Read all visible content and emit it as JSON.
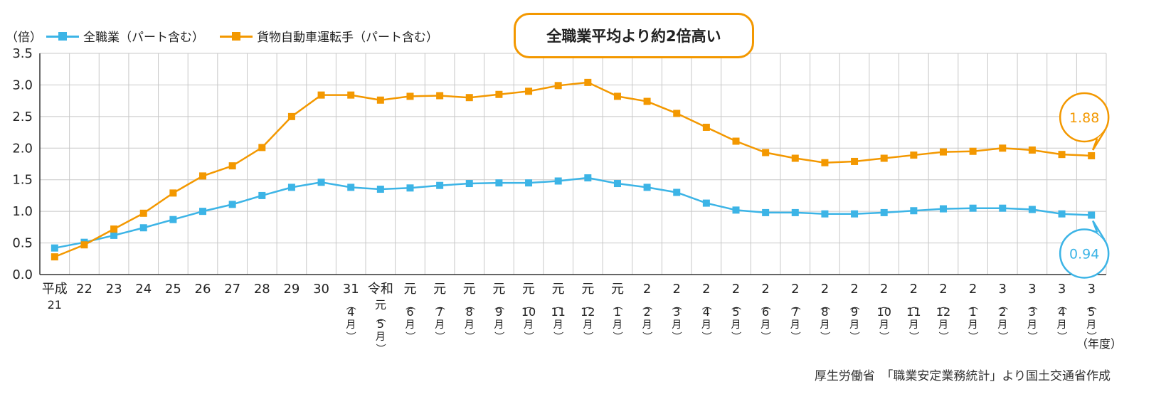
{
  "legend": {
    "unit": "（倍）",
    "items": [
      {
        "label": "全職業（パート含む）"
      },
      {
        "label": "貨物自動車運転手（パート含む）"
      }
    ]
  },
  "annotation": "全職業平均より約2倍高い",
  "source": "厚生労働省　「職業安定業務統計」より国土交通省作成",
  "x_unit": "（年度）",
  "chart_data": {
    "type": "line",
    "ylim": [
      0,
      3.5
    ],
    "y_ticks": [
      "0.0",
      "0.5",
      "1.0",
      "1.5",
      "2.0",
      "2.5",
      "3.0",
      "3.5"
    ],
    "grid": true,
    "categories": [
      [
        "平成",
        "21"
      ],
      [
        "22"
      ],
      [
        "23"
      ],
      [
        "24"
      ],
      [
        "25"
      ],
      [
        "26"
      ],
      [
        "27"
      ],
      [
        "28"
      ],
      [
        "29"
      ],
      [
        "30"
      ],
      [
        "31",
        "（",
        "4",
        "月",
        "）"
      ],
      [
        "令和",
        "元",
        "（",
        "5",
        "月",
        "）"
      ],
      [
        "元",
        "（",
        "6",
        "月",
        "）"
      ],
      [
        "元",
        "（",
        "7",
        "月",
        "）"
      ],
      [
        "元",
        "（",
        "8",
        "月",
        "）"
      ],
      [
        "元",
        "（",
        "9",
        "月",
        "）"
      ],
      [
        "元",
        "（",
        "10",
        "月",
        "）"
      ],
      [
        "元",
        "（",
        "11",
        "月",
        "）"
      ],
      [
        "元",
        "（",
        "12",
        "月",
        "）"
      ],
      [
        "元",
        "（",
        "1",
        "月",
        "）"
      ],
      [
        "2",
        "（",
        "2",
        "月",
        "）"
      ],
      [
        "2",
        "（",
        "3",
        "月",
        "）"
      ],
      [
        "2",
        "（",
        "4",
        "月",
        "）"
      ],
      [
        "2",
        "（",
        "5",
        "月",
        "）"
      ],
      [
        "2",
        "（",
        "6",
        "月",
        "）"
      ],
      [
        "2",
        "（",
        "7",
        "月",
        "）"
      ],
      [
        "2",
        "（",
        "8",
        "月",
        "）"
      ],
      [
        "2",
        "（",
        "9",
        "月",
        "）"
      ],
      [
        "2",
        "（",
        "10",
        "月",
        "）"
      ],
      [
        "2",
        "（",
        "11",
        "月",
        "）"
      ],
      [
        "2",
        "（",
        "12",
        "月",
        "）"
      ],
      [
        "2",
        "（",
        "1",
        "月",
        "）"
      ],
      [
        "3",
        "（",
        "2",
        "月",
        "）"
      ],
      [
        "3",
        "（",
        "3",
        "月",
        "）"
      ],
      [
        "3",
        "（",
        "4",
        "月",
        "）"
      ],
      [
        "3",
        "（",
        "5",
        "月",
        "）"
      ]
    ],
    "series": [
      {
        "name": "全職業（パート含む）",
        "color": "#3cb4e6",
        "values": [
          0.42,
          0.51,
          0.62,
          0.74,
          0.87,
          1.0,
          1.11,
          1.25,
          1.38,
          1.46,
          1.38,
          1.35,
          1.37,
          1.41,
          1.44,
          1.45,
          1.45,
          1.48,
          1.53,
          1.44,
          1.38,
          1.3,
          1.13,
          1.02,
          0.98,
          0.98,
          0.96,
          0.96,
          0.98,
          1.01,
          1.04,
          1.05,
          1.05,
          1.03,
          0.96,
          0.94
        ],
        "end_label": "0.94"
      },
      {
        "name": "貨物自動車運転手（パート含む）",
        "color": "#f39800",
        "values": [
          0.28,
          0.47,
          0.72,
          0.97,
          1.29,
          1.56,
          1.72,
          2.01,
          2.5,
          2.84,
          2.84,
          2.76,
          2.82,
          2.83,
          2.8,
          2.85,
          2.9,
          2.99,
          3.04,
          2.82,
          2.74,
          2.55,
          2.33,
          2.11,
          1.93,
          1.84,
          1.77,
          1.79,
          1.84,
          1.89,
          1.94,
          1.95,
          2.0,
          1.97,
          1.9,
          1.88
        ],
        "end_label": "1.88"
      }
    ]
  }
}
